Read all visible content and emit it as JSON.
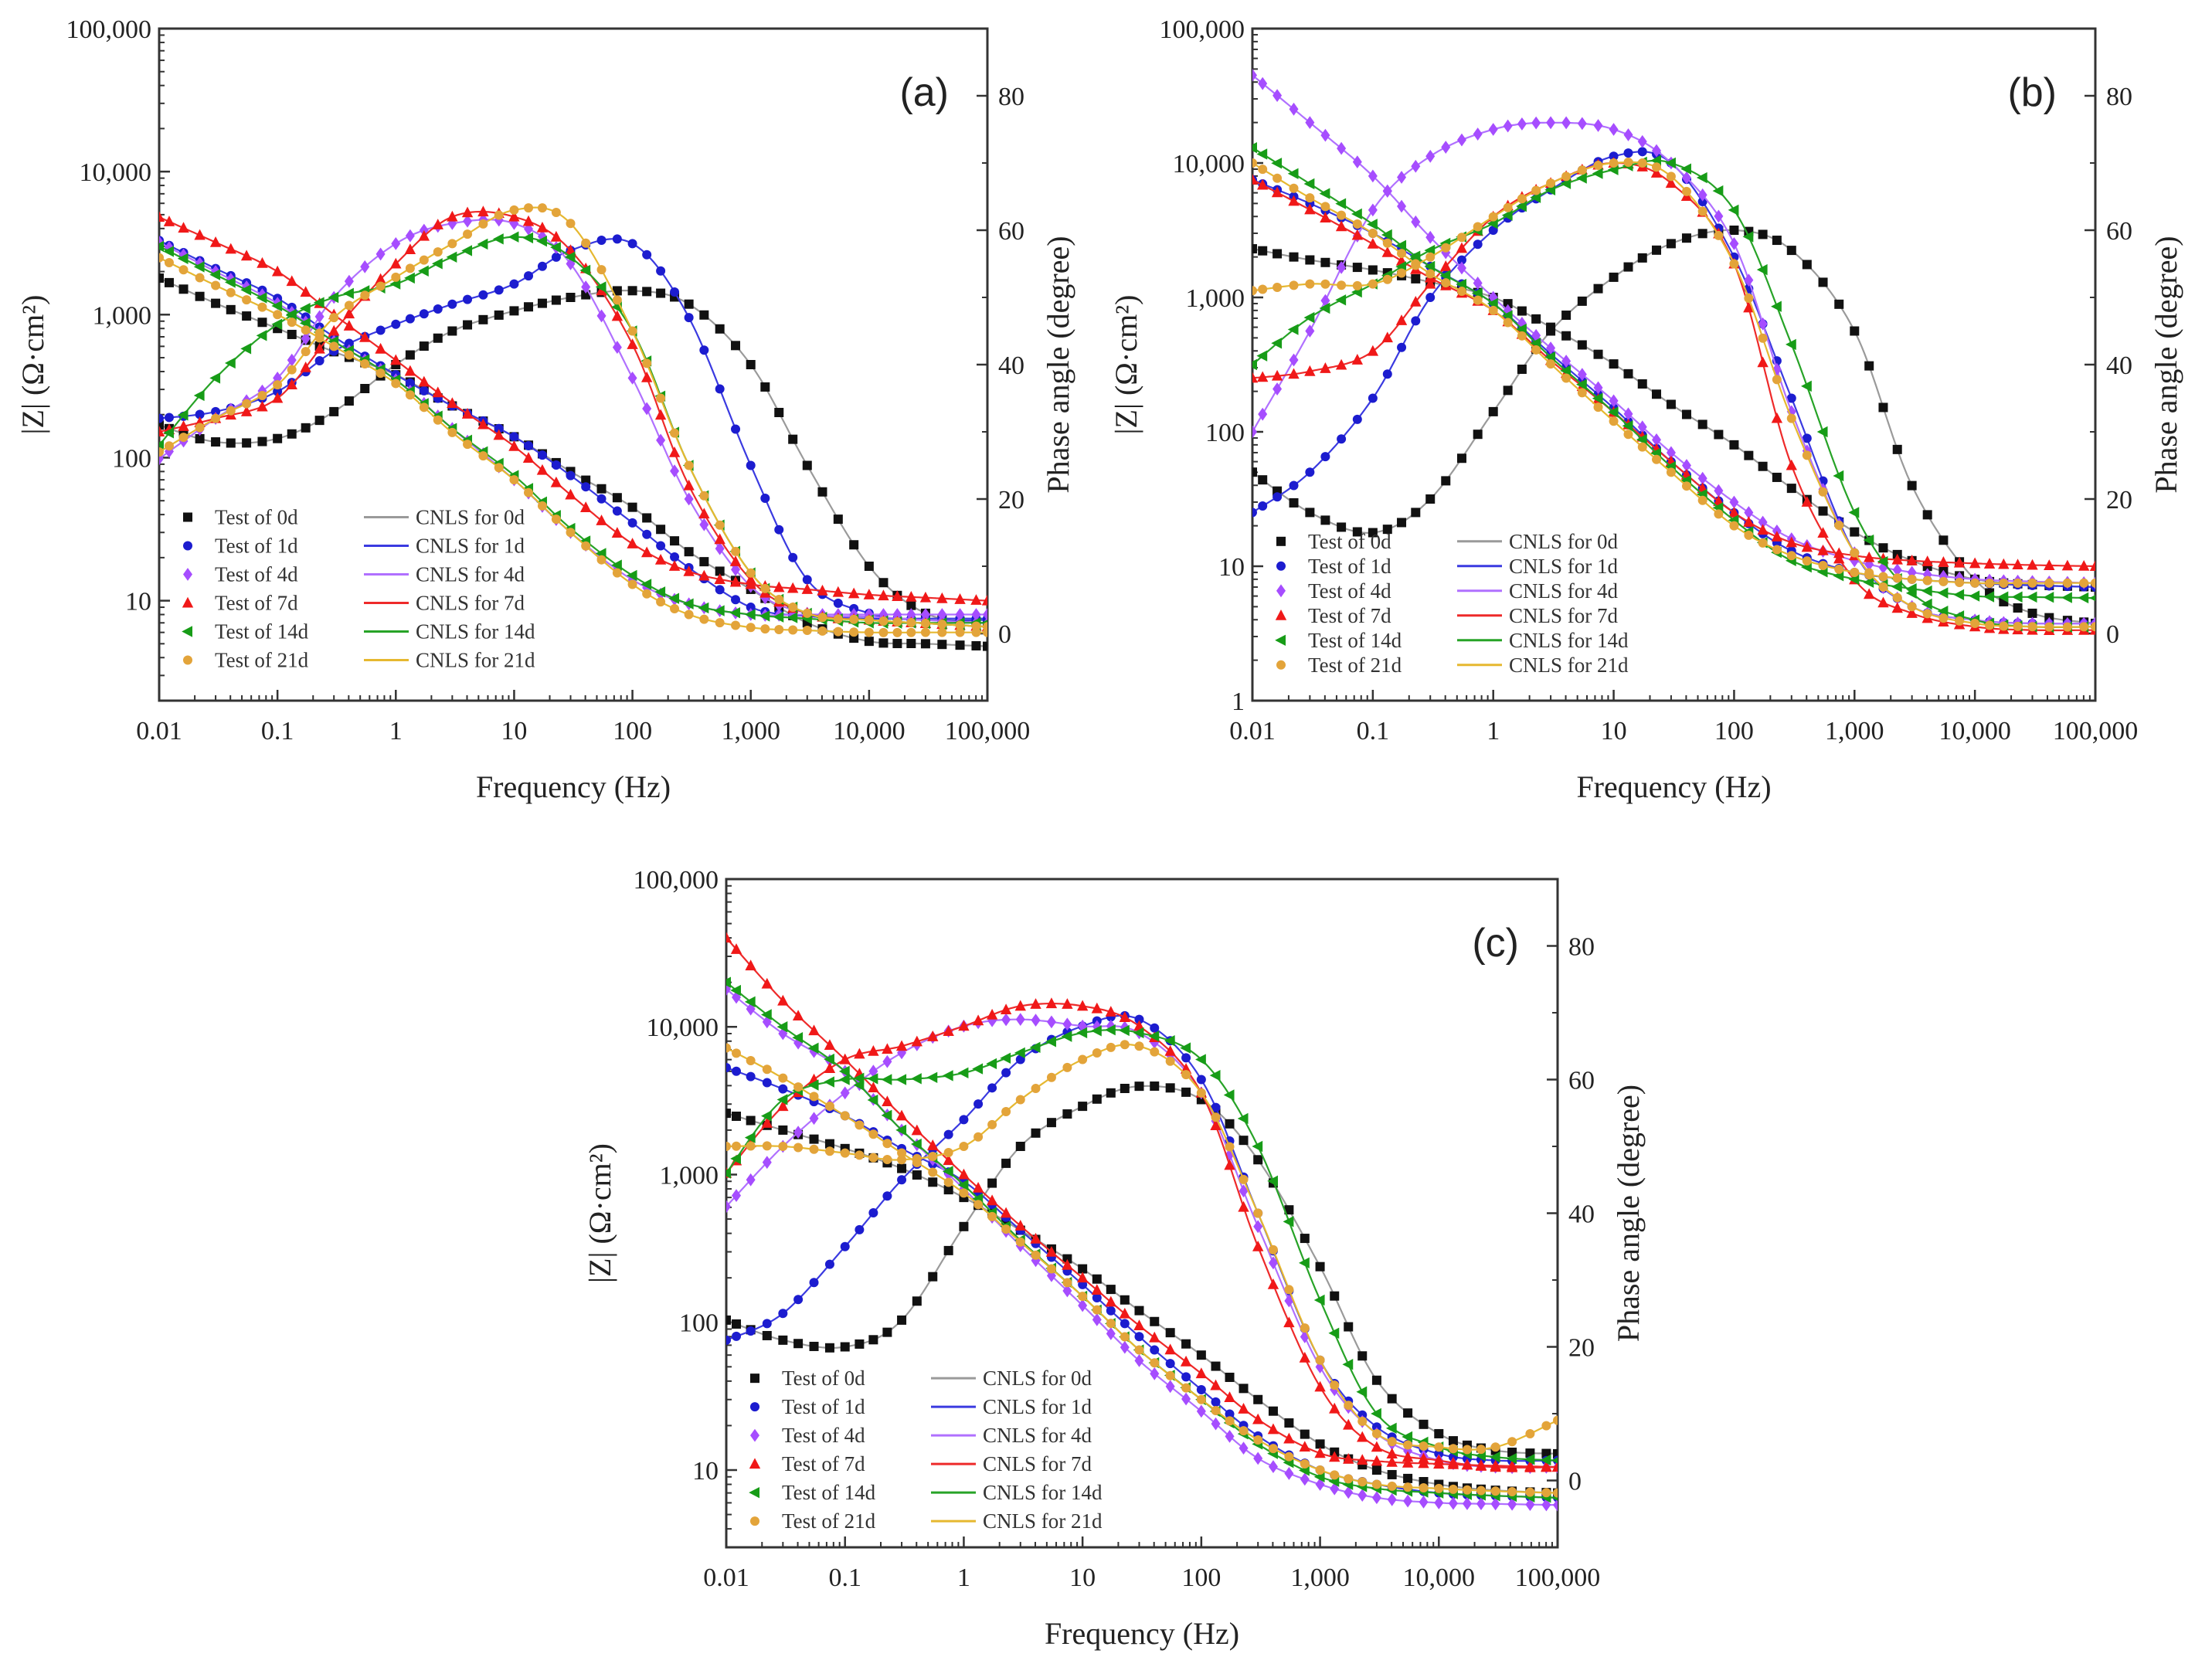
{
  "series_style": {
    "labels": [
      "0d",
      "1d",
      "4d",
      "7d",
      "14d",
      "21d"
    ],
    "marker_colors": [
      "#111111",
      "#1c1ccf",
      "#a64dff",
      "#f01818",
      "#179c17",
      "#e3a43a"
    ],
    "fit_colors": [
      "#9a9a9a",
      "#3a3ae0",
      "#b070ff",
      "#ee2a2a",
      "#27a327",
      "#e6b830"
    ],
    "markers": [
      "square",
      "circle",
      "diamond",
      "triangle-up",
      "triangle-left",
      "circle"
    ]
  },
  "chart_data": [
    {
      "type": "line",
      "panel_label": "(a)",
      "xlabel": "Frequency (Hz)",
      "ylabel_left": "|Z| (Ω·cm²)",
      "ylabel_right": "Phase angle (degree)",
      "xlim": [
        0.01,
        100000
      ],
      "xscale": "log",
      "ylim_left": [
        2,
        100000
      ],
      "yscale_left": "log",
      "ylim_right": [
        -10,
        90
      ],
      "x_ticks": [
        "0.01",
        "0.1",
        "1",
        "10",
        "100",
        "1,000",
        "10,000",
        "100,000"
      ],
      "y_left_ticks": [
        "10",
        "100",
        "1,000",
        "10,000",
        "100,000"
      ],
      "y_right_ticks": [
        "0",
        "20",
        "40",
        "60",
        "80"
      ],
      "legend_test": [
        "Test of 0d",
        "Test of 1d",
        "Test of 4d",
        "Test of 7d",
        "Test of 14d",
        "Test of 21d"
      ],
      "legend_fit": [
        "CNLS for 0d",
        "CNLS for 1d",
        "CNLS for 4d",
        "CNLS for 7d",
        "CNLS for 14d",
        "CNLS for 21d"
      ],
      "legend_placement": "bottom-left",
      "frequency": [
        0.01,
        0.03,
        0.1,
        0.3,
        1,
        3,
        10,
        30,
        100,
        300,
        1000,
        3000,
        10000,
        30000,
        100000
      ],
      "series": [
        {
          "name": "0d",
          "z": [
            1800,
            1200,
            800,
            550,
            380,
            230,
            140,
            80,
            45,
            22,
            12,
            7,
            5.2,
            5,
            4.8
          ],
          "phase": [
            31,
            28.5,
            29,
            33,
            40,
            45,
            48,
            50,
            51,
            49,
            40,
            25,
            10,
            3,
            1.5
          ]
        },
        {
          "name": "1d",
          "z": [
            3300,
            2100,
            1300,
            700,
            380,
            230,
            140,
            75,
            35,
            17,
            9,
            7.8,
            7.5,
            7.5,
            7.5
          ],
          "phase": [
            32,
            33,
            36,
            42,
            46,
            49,
            52,
            57,
            58,
            47,
            25,
            8,
            3,
            2,
            2
          ]
        },
        {
          "name": "4d",
          "z": [
            3200,
            2000,
            1200,
            650,
            350,
            160,
            70,
            30,
            14,
            9.5,
            8,
            8,
            8,
            8,
            8
          ],
          "phase": [
            26,
            32,
            38,
            50,
            58,
            61,
            61,
            55,
            38,
            20,
            7,
            3,
            2.5,
            2,
            1.5
          ]
        },
        {
          "name": "7d",
          "z": [
            4800,
            3200,
            2000,
            1000,
            480,
            240,
            120,
            55,
            25,
            16,
            13,
            12,
            11,
            10.5,
            10
          ],
          "phase": [
            30,
            32,
            35,
            45,
            55,
            62,
            62,
            57,
            43,
            22,
            8,
            3,
            2,
            1.5,
            1
          ]
        },
        {
          "name": "14d",
          "z": [
            3000,
            1900,
            1150,
            650,
            350,
            160,
            75,
            32,
            15,
            9.5,
            8,
            7.5,
            7,
            7,
            7
          ],
          "phase": [
            28,
            38,
            46,
            50,
            52,
            56,
            59,
            56,
            45,
            25,
            9,
            3,
            2,
            1.5,
            1
          ]
        },
        {
          "name": "21d",
          "z": [
            2500,
            1600,
            1000,
            600,
            330,
            150,
            70,
            30,
            13,
            8,
            6.5,
            6.2,
            6,
            6,
            6
          ],
          "phase": [
            27,
            32,
            37,
            47,
            53,
            58,
            63,
            61,
            45,
            25,
            9,
            3,
            2,
            1.5,
            1
          ]
        }
      ]
    },
    {
      "type": "line",
      "panel_label": "(b)",
      "xlabel": "Frequency (Hz)",
      "ylabel_left": "|Z| (Ω·cm²)",
      "ylabel_right": "Phase angle (degree)",
      "xlim": [
        0.01,
        100000
      ],
      "xscale": "log",
      "ylim_left": [
        1,
        100000
      ],
      "yscale_left": "log",
      "ylim_right": [
        -10,
        90
      ],
      "x_ticks": [
        "0.01",
        "0.1",
        "1",
        "10",
        "100",
        "1,000",
        "10,000",
        "100,000"
      ],
      "y_left_ticks": [
        "1",
        "10",
        "100",
        "1,000",
        "10,000",
        "100,000"
      ],
      "y_right_ticks": [
        "0",
        "20",
        "40",
        "60",
        "80"
      ],
      "legend_test": [
        "Test of 0d",
        "Test of 1d",
        "Test of 4d",
        "Test of 7d",
        "Test of 14d",
        "Test of 21d"
      ],
      "legend_fit": [
        "CNLS for 0d",
        "CNLS for 1d",
        "CNLS for 4d",
        "CNLS for 7d",
        "CNLS for 14d",
        "CNLS for 21d"
      ],
      "legend_placement": "bottom-left",
      "frequency": [
        0.01,
        0.03,
        0.1,
        0.3,
        1,
        3,
        10,
        30,
        100,
        300,
        1000,
        3000,
        10000,
        30000,
        100000
      ],
      "series": [
        {
          "name": "0d",
          "z": [
            2300,
            1900,
            1600,
            1300,
            1000,
            600,
            320,
            160,
            80,
            38,
            18,
            11,
            8,
            7.3,
            7
          ],
          "phase": [
            24,
            18,
            15,
            20,
            33,
            45,
            53,
            58,
            60,
            57,
            45,
            22,
            8,
            3,
            1.5
          ]
        },
        {
          "name": "1d",
          "z": [
            7500,
            5000,
            3000,
            1700,
            900,
            380,
            150,
            60,
            25,
            13,
            9,
            8,
            7.5,
            7.2,
            7
          ],
          "phase": [
            18,
            24,
            35,
            50,
            60,
            66,
            71,
            70,
            56,
            35,
            12,
            4,
            2,
            1.5,
            1.5
          ]
        },
        {
          "name": "4d",
          "z": [
            45000,
            20000,
            8000,
            2800,
            1000,
            420,
            170,
            70,
            30,
            16,
            11,
            9,
            8,
            7.7,
            7.5
          ],
          "phase": [
            30,
            45,
            63,
            71,
            75,
            76,
            75,
            70,
            58,
            33,
            12,
            4,
            2,
            1.5,
            1.5
          ]
        },
        {
          "name": "7d",
          "z": [
            7500,
            4500,
            2500,
            1400,
            800,
            340,
            140,
            60,
            25,
            15,
            12,
            11,
            10.5,
            10.2,
            10
          ],
          "phase": [
            38,
            39,
            42,
            52,
            62,
            67,
            70,
            67,
            55,
            25,
            8,
            3,
            1,
            0.5,
            0.5
          ]
        },
        {
          "name": "14d",
          "z": [
            13000,
            7000,
            3500,
            1700,
            900,
            360,
            140,
            55,
            22,
            11,
            8,
            6.8,
            6,
            5.9,
            5.8
          ],
          "phase": [
            40,
            47,
            52,
            57,
            61,
            66,
            69,
            70,
            63,
            43,
            18,
            6,
            2,
            1,
            1
          ]
        },
        {
          "name": "21d",
          "z": [
            10000,
            5500,
            3000,
            1500,
            800,
            320,
            120,
            50,
            20,
            12,
            9,
            8,
            7.5,
            7.5,
            7.5
          ],
          "phase": [
            51,
            52,
            52,
            56,
            62,
            67,
            70,
            68,
            55,
            32,
            12,
            4,
            1.5,
            1,
            1
          ]
        }
      ]
    },
    {
      "type": "line",
      "panel_label": "(c)",
      "xlabel": "Frequency (Hz)",
      "ylabel_left": "|Z| (Ω·cm²)",
      "ylabel_right": "Phase angle (degree)",
      "xlim": [
        0.01,
        100000
      ],
      "xscale": "log",
      "ylim_left": [
        3,
        100000
      ],
      "yscale_left": "log",
      "ylim_right": [
        -10,
        90
      ],
      "x_ticks": [
        "0.01",
        "0.1",
        "1",
        "10",
        "100",
        "1,000",
        "10,000",
        "100,000"
      ],
      "y_left_ticks": [
        "10",
        "100",
        "1,000",
        "10,000",
        "100,000"
      ],
      "y_right_ticks": [
        "0",
        "20",
        "40",
        "60",
        "80"
      ],
      "legend_test": [
        "Test of 0d",
        "Test of 1d",
        "Test of 4d",
        "Test of 7d",
        "Test of 14d",
        "Test of 21d"
      ],
      "legend_fit": [
        "CNLS for 0d",
        "CNLS for 1d",
        "CNLS for 4d",
        "CNLS for 7d",
        "CNLS for 14d",
        "CNLS for 21d"
      ],
      "legend_placement": "bottom-left",
      "frequency": [
        0.01,
        0.03,
        0.1,
        0.3,
        1,
        3,
        10,
        30,
        100,
        300,
        1000,
        3000,
        10000,
        30000,
        100000
      ],
      "series": [
        {
          "name": "0d",
          "z": [
            2600,
            2000,
            1500,
            1100,
            700,
            420,
            230,
            120,
            60,
            30,
            15,
            10,
            8,
            7.3,
            7
          ],
          "phase": [
            24,
            21,
            20,
            24,
            38,
            50,
            56,
            59,
            57,
            48,
            32,
            15,
            7,
            4.5,
            4
          ]
        },
        {
          "name": "1d",
          "z": [
            5300,
            3800,
            2500,
            1500,
            900,
            420,
            180,
            80,
            35,
            17,
            10,
            8,
            7,
            6.7,
            6.5
          ],
          "phase": [
            21,
            25,
            35,
            45,
            54,
            63,
            68,
            69,
            60,
            40,
            18,
            8,
            4,
            3,
            3
          ]
        },
        {
          "name": "4d",
          "z": [
            18000,
            9000,
            5000,
            2000,
            800,
            330,
            130,
            55,
            25,
            12,
            8,
            6.5,
            6,
            5.9,
            5.8
          ],
          "phase": [
            41,
            50,
            58,
            64,
            68,
            69,
            68,
            67,
            58,
            38,
            17,
            7,
            3,
            2,
            2
          ]
        },
        {
          "name": "7d",
          "z": [
            40000,
            15000,
            6000,
            2500,
            1000,
            450,
            200,
            95,
            45,
            22,
            13,
            11.5,
            11,
            10.7,
            10.5
          ],
          "phase": [
            46,
            56,
            63,
            65,
            68,
            71,
            71,
            68,
            58,
            35,
            14,
            5,
            3,
            2,
            2
          ]
        },
        {
          "name": "14d",
          "z": [
            20000,
            10000,
            5000,
            2000,
            850,
            360,
            150,
            65,
            30,
            15,
            9,
            7.5,
            7,
            6.7,
            6.5
          ],
          "phase": [
            46,
            57,
            60,
            60,
            61,
            64,
            67,
            67,
            63,
            50,
            27,
            10,
            5,
            3.5,
            3
          ]
        },
        {
          "name": "21d",
          "z": [
            7200,
            4500,
            2500,
            1400,
            750,
            350,
            150,
            65,
            30,
            16,
            10,
            8,
            7.5,
            7.2,
            7
          ],
          "phase": [
            50,
            50,
            49,
            48,
            50,
            57,
            63,
            65,
            58,
            40,
            18,
            7,
            5,
            5,
            9
          ]
        }
      ]
    }
  ]
}
